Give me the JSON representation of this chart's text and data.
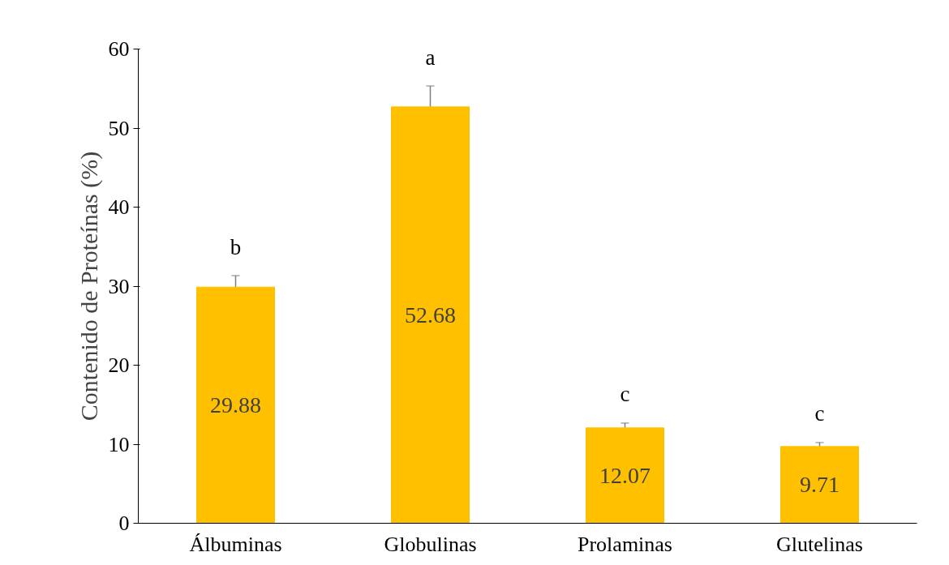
{
  "chart_data": {
    "type": "bar",
    "ylabel": "Contenido de Proteínas (%)",
    "categories": [
      "Álbuminas",
      "Globulinas",
      "Prolaminas",
      "Glutelinas"
    ],
    "values": [
      29.88,
      52.68,
      12.07,
      9.71
    ],
    "errors": [
      1.45,
      2.65,
      0.6,
      0.5
    ],
    "color": "#ffc000",
    "data_labels": true,
    "ylim": [
      0,
      60
    ],
    "yticks": [
      0,
      10,
      20,
      30,
      40,
      50,
      60
    ],
    "grid": false,
    "annotations": [
      "b",
      "a",
      "c",
      "c"
    ]
  }
}
